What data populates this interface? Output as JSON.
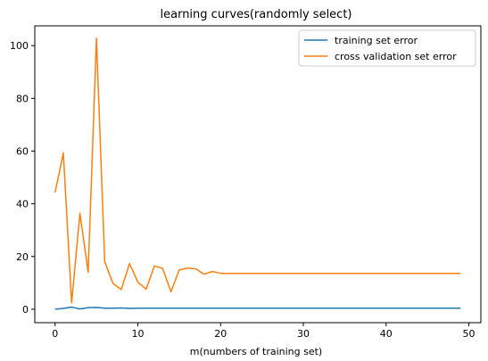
{
  "chart_data": {
    "type": "line",
    "title": "learning curves(randomly select)",
    "xlabel": "m(numbers of training set)",
    "ylabel": "",
    "xlim": [
      -2.45,
      51.45
    ],
    "ylim": [
      -5.1,
      107.5
    ],
    "xticks": [
      0,
      10,
      20,
      30,
      40,
      50
    ],
    "yticks": [
      0,
      20,
      40,
      60,
      80,
      100
    ],
    "grid": false,
    "legend_position": "top-right",
    "series": [
      {
        "name": "training set error",
        "color": "#1f77b4",
        "x": [
          0,
          1,
          2,
          3,
          4,
          5,
          6,
          7,
          8,
          9,
          10,
          11,
          12,
          13,
          14,
          15,
          16,
          17,
          18,
          19,
          20,
          21,
          22,
          23,
          24,
          25,
          26,
          27,
          28,
          29,
          30,
          31,
          32,
          33,
          34,
          35,
          36,
          37,
          38,
          39,
          40,
          41,
          42,
          43,
          44,
          45,
          46,
          47,
          48,
          49
        ],
        "y": [
          0,
          0.3,
          0.8,
          0.1,
          0.6,
          0.7,
          0.4,
          0.4,
          0.5,
          0.3,
          0.4,
          0.4,
          0.4,
          0.4,
          0.4,
          0.4,
          0.4,
          0.4,
          0.4,
          0.4,
          0.4,
          0.4,
          0.4,
          0.4,
          0.4,
          0.4,
          0.4,
          0.4,
          0.4,
          0.4,
          0.4,
          0.4,
          0.4,
          0.4,
          0.4,
          0.4,
          0.4,
          0.4,
          0.4,
          0.4,
          0.4,
          0.4,
          0.4,
          0.4,
          0.4,
          0.4,
          0.4,
          0.4,
          0.4,
          0.4
        ]
      },
      {
        "name": "cross validation set error",
        "color": "#ff7f0e",
        "x": [
          0,
          1,
          2,
          3,
          4,
          5,
          6,
          7,
          8,
          9,
          10,
          11,
          12,
          13,
          14,
          15,
          16,
          17,
          18,
          19,
          20,
          21,
          22,
          23,
          24,
          25,
          26,
          27,
          28,
          29,
          30,
          31,
          32,
          33,
          34,
          35,
          36,
          37,
          38,
          39,
          40,
          41,
          42,
          43,
          44,
          45,
          46,
          47,
          48,
          49
        ],
        "y": [
          44.3,
          59.3,
          2.4,
          36.4,
          14.0,
          102.8,
          18.0,
          9.8,
          7.5,
          17.3,
          10.3,
          7.6,
          16.4,
          15.5,
          6.6,
          14.9,
          15.6,
          15.3,
          13.3,
          14.3,
          13.6,
          13.6,
          13.6,
          13.6,
          13.6,
          13.6,
          13.6,
          13.6,
          13.6,
          13.6,
          13.6,
          13.6,
          13.6,
          13.6,
          13.6,
          13.6,
          13.6,
          13.6,
          13.6,
          13.6,
          13.6,
          13.6,
          13.6,
          13.6,
          13.6,
          13.6,
          13.6,
          13.6,
          13.6,
          13.6
        ]
      }
    ]
  }
}
